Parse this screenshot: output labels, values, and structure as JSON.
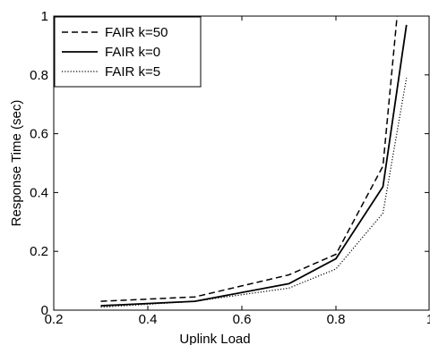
{
  "chart_data": {
    "type": "line",
    "title": "",
    "xlabel": "Uplink Load",
    "ylabel": "Response Time (sec)",
    "xlim": [
      0.2,
      1.0
    ],
    "ylim": [
      0,
      1.0
    ],
    "xticks": [
      "0.2",
      "0.4",
      "0.6",
      "0.8",
      "1"
    ],
    "yticks": [
      "0",
      "0.2",
      "0.4",
      "0.6",
      "0.8",
      "1"
    ],
    "grid": false,
    "legend_position": "top-left",
    "series": [
      {
        "name": "FAIR k=50",
        "style": "dashed",
        "color": "#000000",
        "x": [
          0.3,
          0.5,
          0.7,
          0.8,
          0.9,
          0.93
        ],
        "y": [
          0.03,
          0.045,
          0.12,
          0.19,
          0.49,
          1.0
        ]
      },
      {
        "name": "FAIR k=0",
        "style": "solid",
        "color": "#000000",
        "x": [
          0.3,
          0.5,
          0.7,
          0.8,
          0.9,
          0.95
        ],
        "y": [
          0.015,
          0.03,
          0.09,
          0.175,
          0.42,
          0.97
        ]
      },
      {
        "name": "FAIR k=5",
        "style": "dotted",
        "color": "#000000",
        "x": [
          0.3,
          0.5,
          0.7,
          0.8,
          0.9,
          0.95
        ],
        "y": [
          0.01,
          0.03,
          0.075,
          0.14,
          0.33,
          0.79
        ]
      }
    ]
  }
}
